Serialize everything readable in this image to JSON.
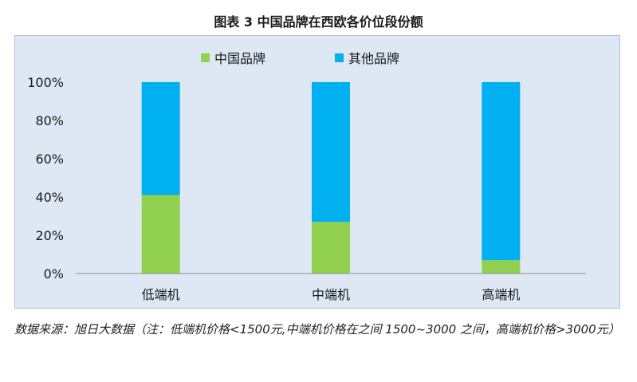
{
  "figure": {
    "title": "图表 3    中国品牌在西欧各价位段份额"
  },
  "chart_data": {
    "type": "bar",
    "stacked": true,
    "categories": [
      "低端机",
      "中端机",
      "高端机"
    ],
    "series": [
      {
        "name": "中国品牌",
        "values": [
          41,
          27,
          7
        ],
        "color": "#92d050"
      },
      {
        "name": "其他品牌",
        "values": [
          59,
          73,
          93
        ],
        "color": "#00b0f0"
      }
    ],
    "ylim": [
      0,
      100
    ],
    "yticks": [
      "0%",
      "20%",
      "40%",
      "60%",
      "80%",
      "100%"
    ],
    "legend_position": "top-center",
    "grid": false
  },
  "source": {
    "text": "数据来源：旭日大数据（注：低端机价格<1500元,中端机价格在之间 1500~3000 之间，高端机价格>3000元）"
  }
}
